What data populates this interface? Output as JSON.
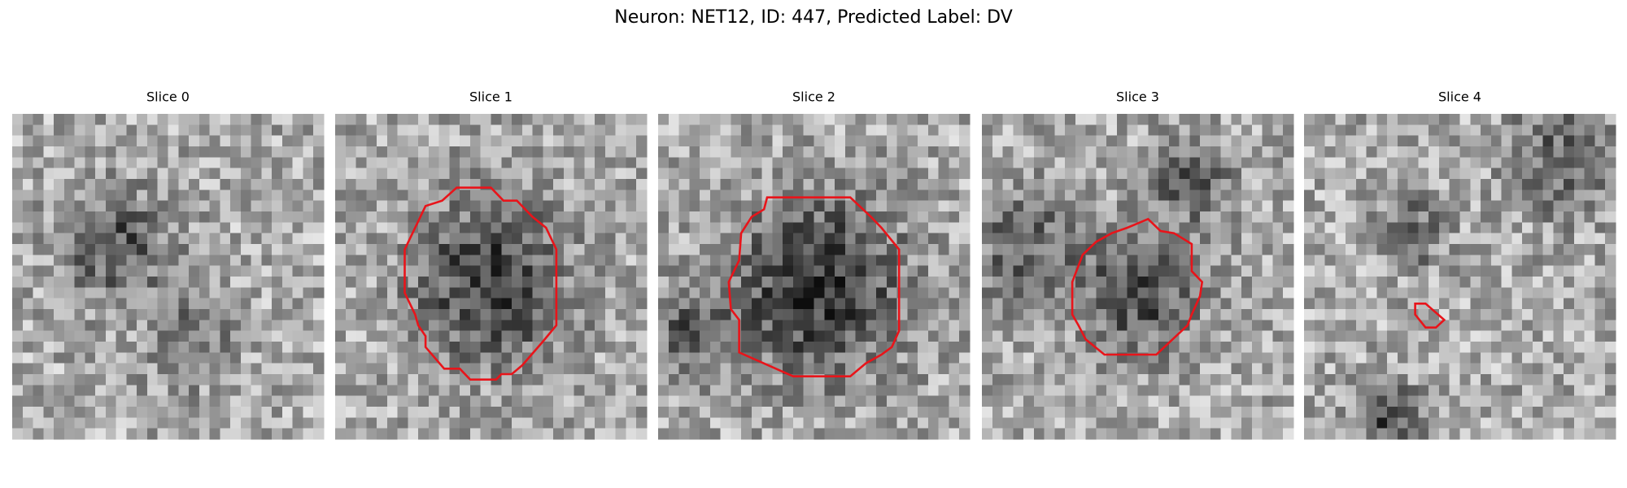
{
  "title": "Neuron: NET12, ID: 447, Predicted Label: DV",
  "panels": [
    {
      "title": "Slice 0"
    },
    {
      "title": "Slice 1"
    },
    {
      "title": "Slice 2"
    },
    {
      "title": "Slice 3"
    },
    {
      "title": "Slice 4"
    }
  ]
}
